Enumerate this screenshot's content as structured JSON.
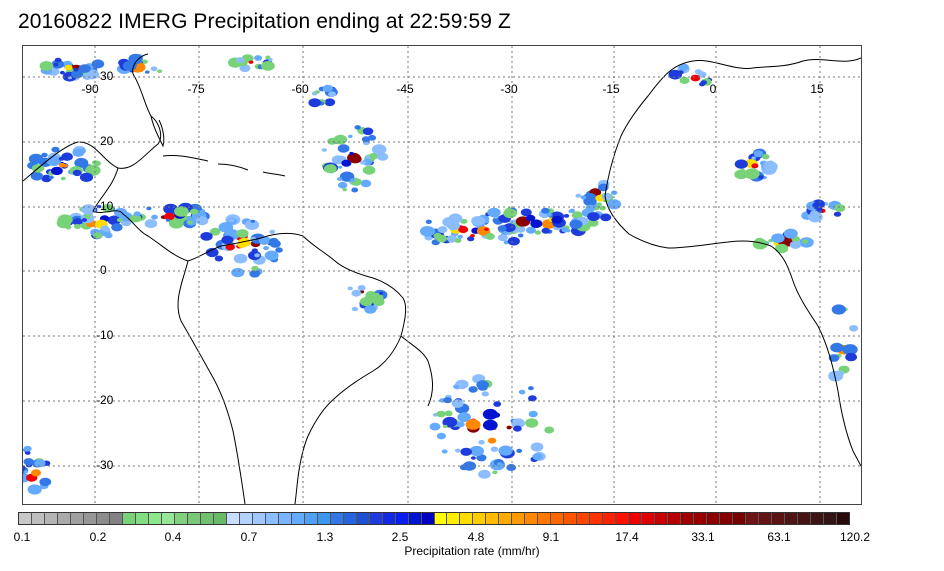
{
  "title": "20160822 IMERG Precipitation ending at 22:59:59 Z",
  "map": {
    "lon_labels": [
      "-90",
      "-75",
      "-60",
      "-45",
      "-30",
      "-15",
      "0",
      "15"
    ],
    "lat_labels": [
      "30",
      "20",
      "10",
      "0",
      "-10",
      "-20",
      "-30"
    ],
    "coastline_color": "#000000",
    "gridline_color": "#666666",
    "gridline_style": "dotted"
  },
  "colorbar": {
    "caption": "Precipitation rate (mm/hr)",
    "tick_labels": [
      "0.1",
      "0.2",
      "0.4",
      "0.7",
      "1.3",
      "2.5",
      "4.8",
      "9.1",
      "17.4",
      "33.1",
      "63.1",
      "120.2"
    ],
    "colors": [
      "#c8c8c8",
      "#bebebe",
      "#b4b4b4",
      "#aaaaaa",
      "#a0a0a0",
      "#969696",
      "#8c8c8c",
      "#828282",
      "#78d278",
      "#82dc82",
      "#8ce68c",
      "#96e696",
      "#80d080",
      "#78c878",
      "#70c070",
      "#68b868",
      "#c8dcff",
      "#b4d2ff",
      "#a0c8ff",
      "#8cbeff",
      "#78b4ff",
      "#64aaff",
      "#50a0f5",
      "#3c96eb",
      "#3278e6",
      "#2864dc",
      "#1e50d2",
      "#1e3cdc",
      "#1428e6",
      "#0a1ef0",
      "#0014d2",
      "#0000be",
      "#ffff00",
      "#ffee00",
      "#ffdd00",
      "#ffcc00",
      "#ffbb00",
      "#ffaa00",
      "#ff9900",
      "#ff8800",
      "#ff7700",
      "#ff6600",
      "#ff5500",
      "#ff4400",
      "#ff3300",
      "#ff2200",
      "#ff1100",
      "#f00000",
      "#dc0000",
      "#c80000",
      "#b40000",
      "#a00000",
      "#960000",
      "#8c0000",
      "#820000",
      "#780000",
      "#6e1414",
      "#641414",
      "#5a1414",
      "#501414",
      "#461414",
      "#3c1414",
      "#321414",
      "#280a0a"
    ]
  }
}
